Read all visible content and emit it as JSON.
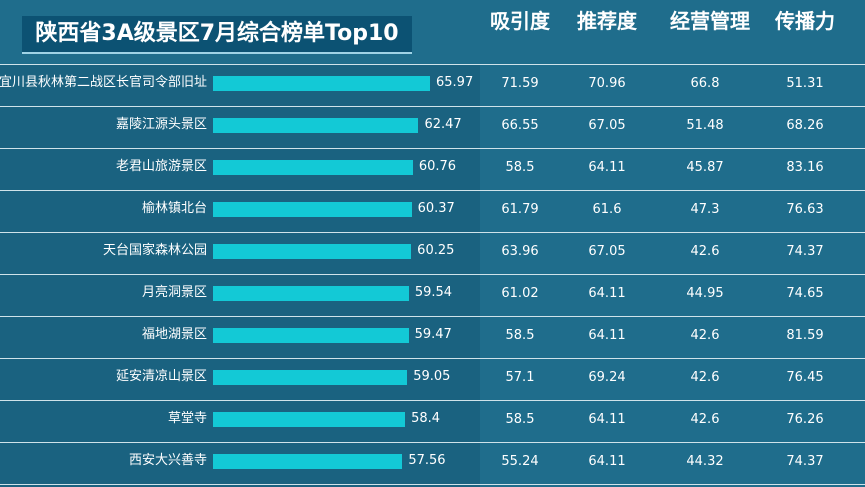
{
  "title": "陕西省3A级景区7月综合榜单Top10",
  "columns": [
    "吸引度",
    "推荐度",
    "经营管理",
    "传播力"
  ],
  "colors": {
    "background": "#1f6d8c",
    "bar": "#13c9d6",
    "title_bg": "#0c5273"
  },
  "chart_data": {
    "type": "bar",
    "orientation": "horizontal",
    "title": "陕西省3A级景区7月综合榜单Top10",
    "categories": [
      "宜川县秋林第二战区长官司令部旧址",
      "嘉陵江源头景区",
      "老君山旅游景区",
      "榆林镇北台",
      "天台国家森林公园",
      "月亮洞景区",
      "福地湖景区",
      "延安清凉山景区",
      "草堂寺",
      "西安大兴善寺"
    ],
    "values": [
      65.97,
      62.47,
      60.76,
      60.37,
      60.25,
      59.54,
      59.47,
      59.05,
      58.4,
      57.56
    ],
    "xlim": [
      0,
      80
    ],
    "grid": false,
    "table": [
      [
        "71.59",
        "70.96",
        "66.8",
        "51.31"
      ],
      [
        "66.55",
        "67.05",
        "51.48",
        "68.26"
      ],
      [
        "58.5",
        "64.11",
        "45.87",
        "83.16"
      ],
      [
        "61.79",
        "61.6",
        "47.3",
        "76.63"
      ],
      [
        "63.96",
        "67.05",
        "42.6",
        "74.37"
      ],
      [
        "61.02",
        "64.11",
        "44.95",
        "74.65"
      ],
      [
        "58.5",
        "64.11",
        "42.6",
        "81.59"
      ],
      [
        "57.1",
        "69.24",
        "42.6",
        "76.45"
      ],
      [
        "58.5",
        "64.11",
        "42.6",
        "76.26"
      ],
      [
        "55.24",
        "64.11",
        "44.32",
        "74.37"
      ]
    ]
  }
}
